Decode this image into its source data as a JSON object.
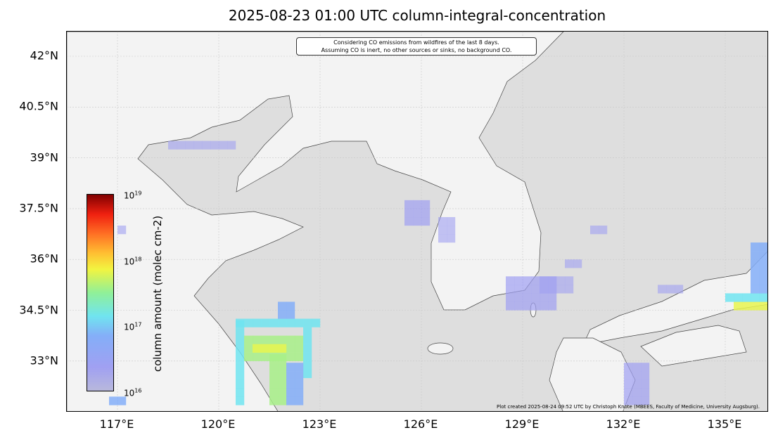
{
  "title": "2025-08-23 01:00 UTC column-integral-concentration",
  "note": [
    "Considering CO emissions from wildfires of the last 8 days.",
    "Assuming CO is inert, no other sources or sinks, no background CO."
  ],
  "credit": "Plot created 2025-08-24 09:52 UTC by Christoph Knote (MBEES, Faculty of Medicine, University Augsburg).",
  "map": {
    "lon_range": [
      115.5,
      136.3
    ],
    "lat_range": [
      31.7,
      42.7
    ],
    "lon_ticks": [
      "117°E",
      "120°E",
      "123°E",
      "126°E",
      "129°E",
      "132°E",
      "135°E"
    ],
    "lat_ticks": [
      "42°N",
      "40.5°N",
      "39°N",
      "37.5°N",
      "36°N",
      "34.5°N",
      "33°N"
    ],
    "colors": {
      "land": "#f3f3f3",
      "sea": "#dedede",
      "border": "#555555",
      "grid": "#c8c8c8"
    }
  },
  "colorbar": {
    "label": "column amount (molec cm-2)",
    "scale": "log",
    "range": [
      "1e16",
      "1e19"
    ],
    "ticks": [
      {
        "base": "10",
        "exp": "19"
      },
      {
        "base": "10",
        "exp": "18"
      },
      {
        "base": "10",
        "exp": "17"
      },
      {
        "base": "10",
        "exp": "16"
      }
    ]
  }
}
